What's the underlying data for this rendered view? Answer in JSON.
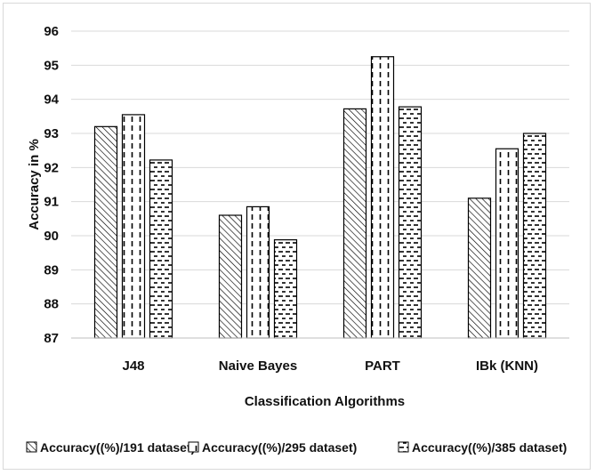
{
  "chart_data": {
    "type": "bar",
    "title": "",
    "xlabel": "Classification Algorithms",
    "ylabel": "Accuracy in %",
    "ylim": [
      87,
      96
    ],
    "yticks": [
      87,
      88,
      89,
      90,
      91,
      92,
      93,
      94,
      95,
      96
    ],
    "grid": true,
    "legend_position": "bottom",
    "categories": [
      "J48",
      "Naive Bayes",
      "PART",
      "IBk (KNN)"
    ],
    "series": [
      {
        "name": "Accuracy((%)/191 dataset)",
        "pattern": "diagonal",
        "values": [
          93.2,
          90.6,
          93.72,
          91.1
        ]
      },
      {
        "name": "Accuracy((%)/295 dataset)",
        "pattern": "vertical-dash",
        "values": [
          93.55,
          90.85,
          95.25,
          92.55
        ]
      },
      {
        "name": "Accuracy((%)/385 dataset)",
        "pattern": "horizontal-dash",
        "values": [
          92.22,
          89.88,
          93.78,
          93.0
        ]
      }
    ],
    "colors": {
      "bar_stroke": "#000000",
      "grid": "#d9d9d9",
      "text": "#111111"
    }
  }
}
